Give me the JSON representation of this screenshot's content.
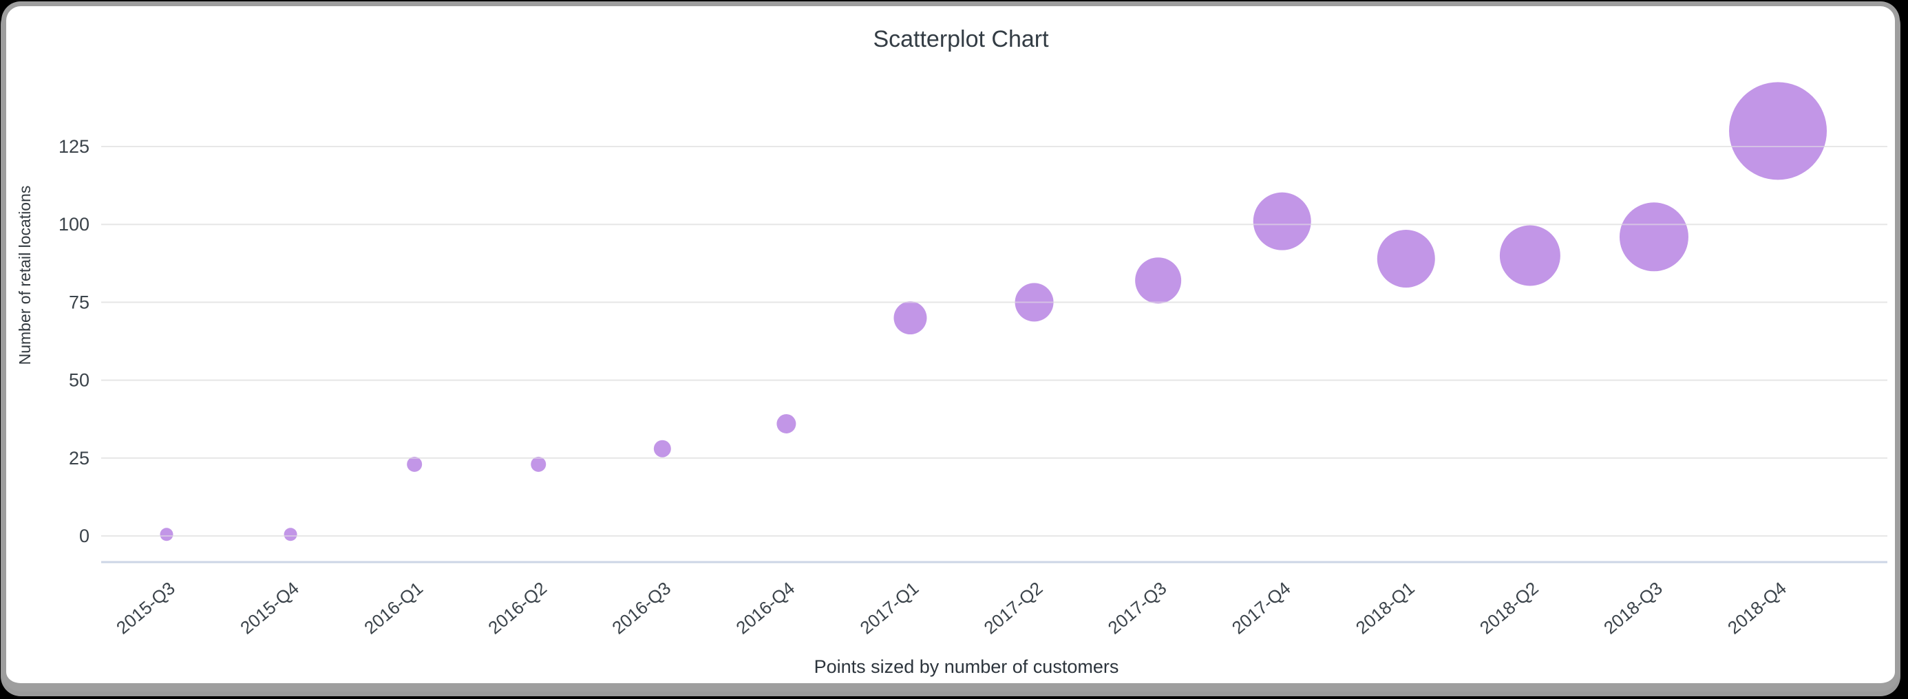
{
  "page": {
    "background_color": "#000000",
    "card_background_color": "#ffffff",
    "card_border_color": "#9e9e9e"
  },
  "chart_data": {
    "type": "scatter",
    "title": "Scatterplot Chart",
    "ylabel": "Number of retail locations",
    "xlabel": "",
    "caption": "Points sized by number of customers",
    "size_by": "number of customers",
    "legend": "none",
    "grid": true,
    "point_color": "#b784e3",
    "gridline_color": "#e7e7e7",
    "axis_line_color": "#ccd5e6",
    "label_color": "#3b434a",
    "y_ticks": [
      0,
      25,
      50,
      75,
      100,
      125
    ],
    "ylim": [
      0,
      135
    ],
    "categories": [
      "2015-Q3",
      "2015-Q4",
      "2016-Q1",
      "2016-Q2",
      "2016-Q3",
      "2016-Q4",
      "2017-Q1",
      "2017-Q2",
      "2017-Q3",
      "2017-Q4",
      "2018-Q1",
      "2018-Q2",
      "2018-Q3",
      "2018-Q4"
    ],
    "values": [
      0.5,
      0.5,
      23,
      23,
      28,
      36,
      70,
      75,
      82,
      101,
      89,
      90,
      96,
      130
    ],
    "point_radius_px": [
      9.5,
      9.5,
      11,
      11,
      12.5,
      14,
      24,
      28,
      33.5,
      42,
      42,
      44,
      50,
      71
    ]
  }
}
